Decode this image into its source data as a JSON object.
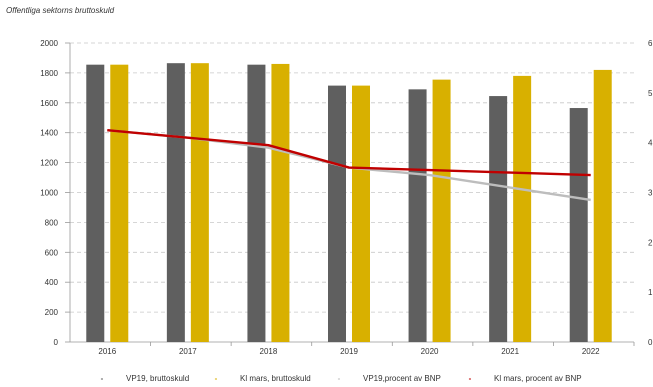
{
  "chart_data": {
    "type": "bar",
    "title": "Offentliga sektorns bruttoskuld",
    "categories": [
      "2016",
      "2017",
      "2018",
      "2019",
      "2020",
      "2021",
      "2022"
    ],
    "series": [
      {
        "name": "VP19, bruttoskuld",
        "kind": "bar",
        "axis": "left",
        "color": "#5f5f5f",
        "values": [
          1855,
          1865,
          1855,
          1715,
          1690,
          1645,
          1565
        ]
      },
      {
        "name": "Kl mars, bruttoskuld",
        "kind": "bar",
        "axis": "left",
        "color": "#d8b000",
        "values": [
          1855,
          1865,
          1860,
          1715,
          1755,
          1780,
          1820
        ]
      },
      {
        "name": "VP19,procent av BNP",
        "kind": "line",
        "axis": "right",
        "color": "#bdbdbd",
        "values": [
          42.5,
          41,
          39,
          35,
          33.5,
          31,
          28.5
        ]
      },
      {
        "name": "Kl mars, procent av BNP",
        "kind": "line",
        "axis": "right",
        "color": "#c00000",
        "values": [
          42.5,
          41,
          39.5,
          35,
          34.5,
          34,
          33.5
        ]
      }
    ],
    "y_left": {
      "min": 0,
      "max": 2000,
      "ticks": [
        "0",
        "200",
        "400",
        "600",
        "800",
        "1000",
        "1200",
        "1400",
        "1600",
        "1800",
        "2000"
      ]
    },
    "y_right": {
      "min": 0,
      "max": 60,
      "ticks": [
        "0",
        "1",
        "2",
        "3",
        "4",
        "5",
        "6"
      ]
    },
    "grid": true,
    "legend_position": "bottom"
  }
}
